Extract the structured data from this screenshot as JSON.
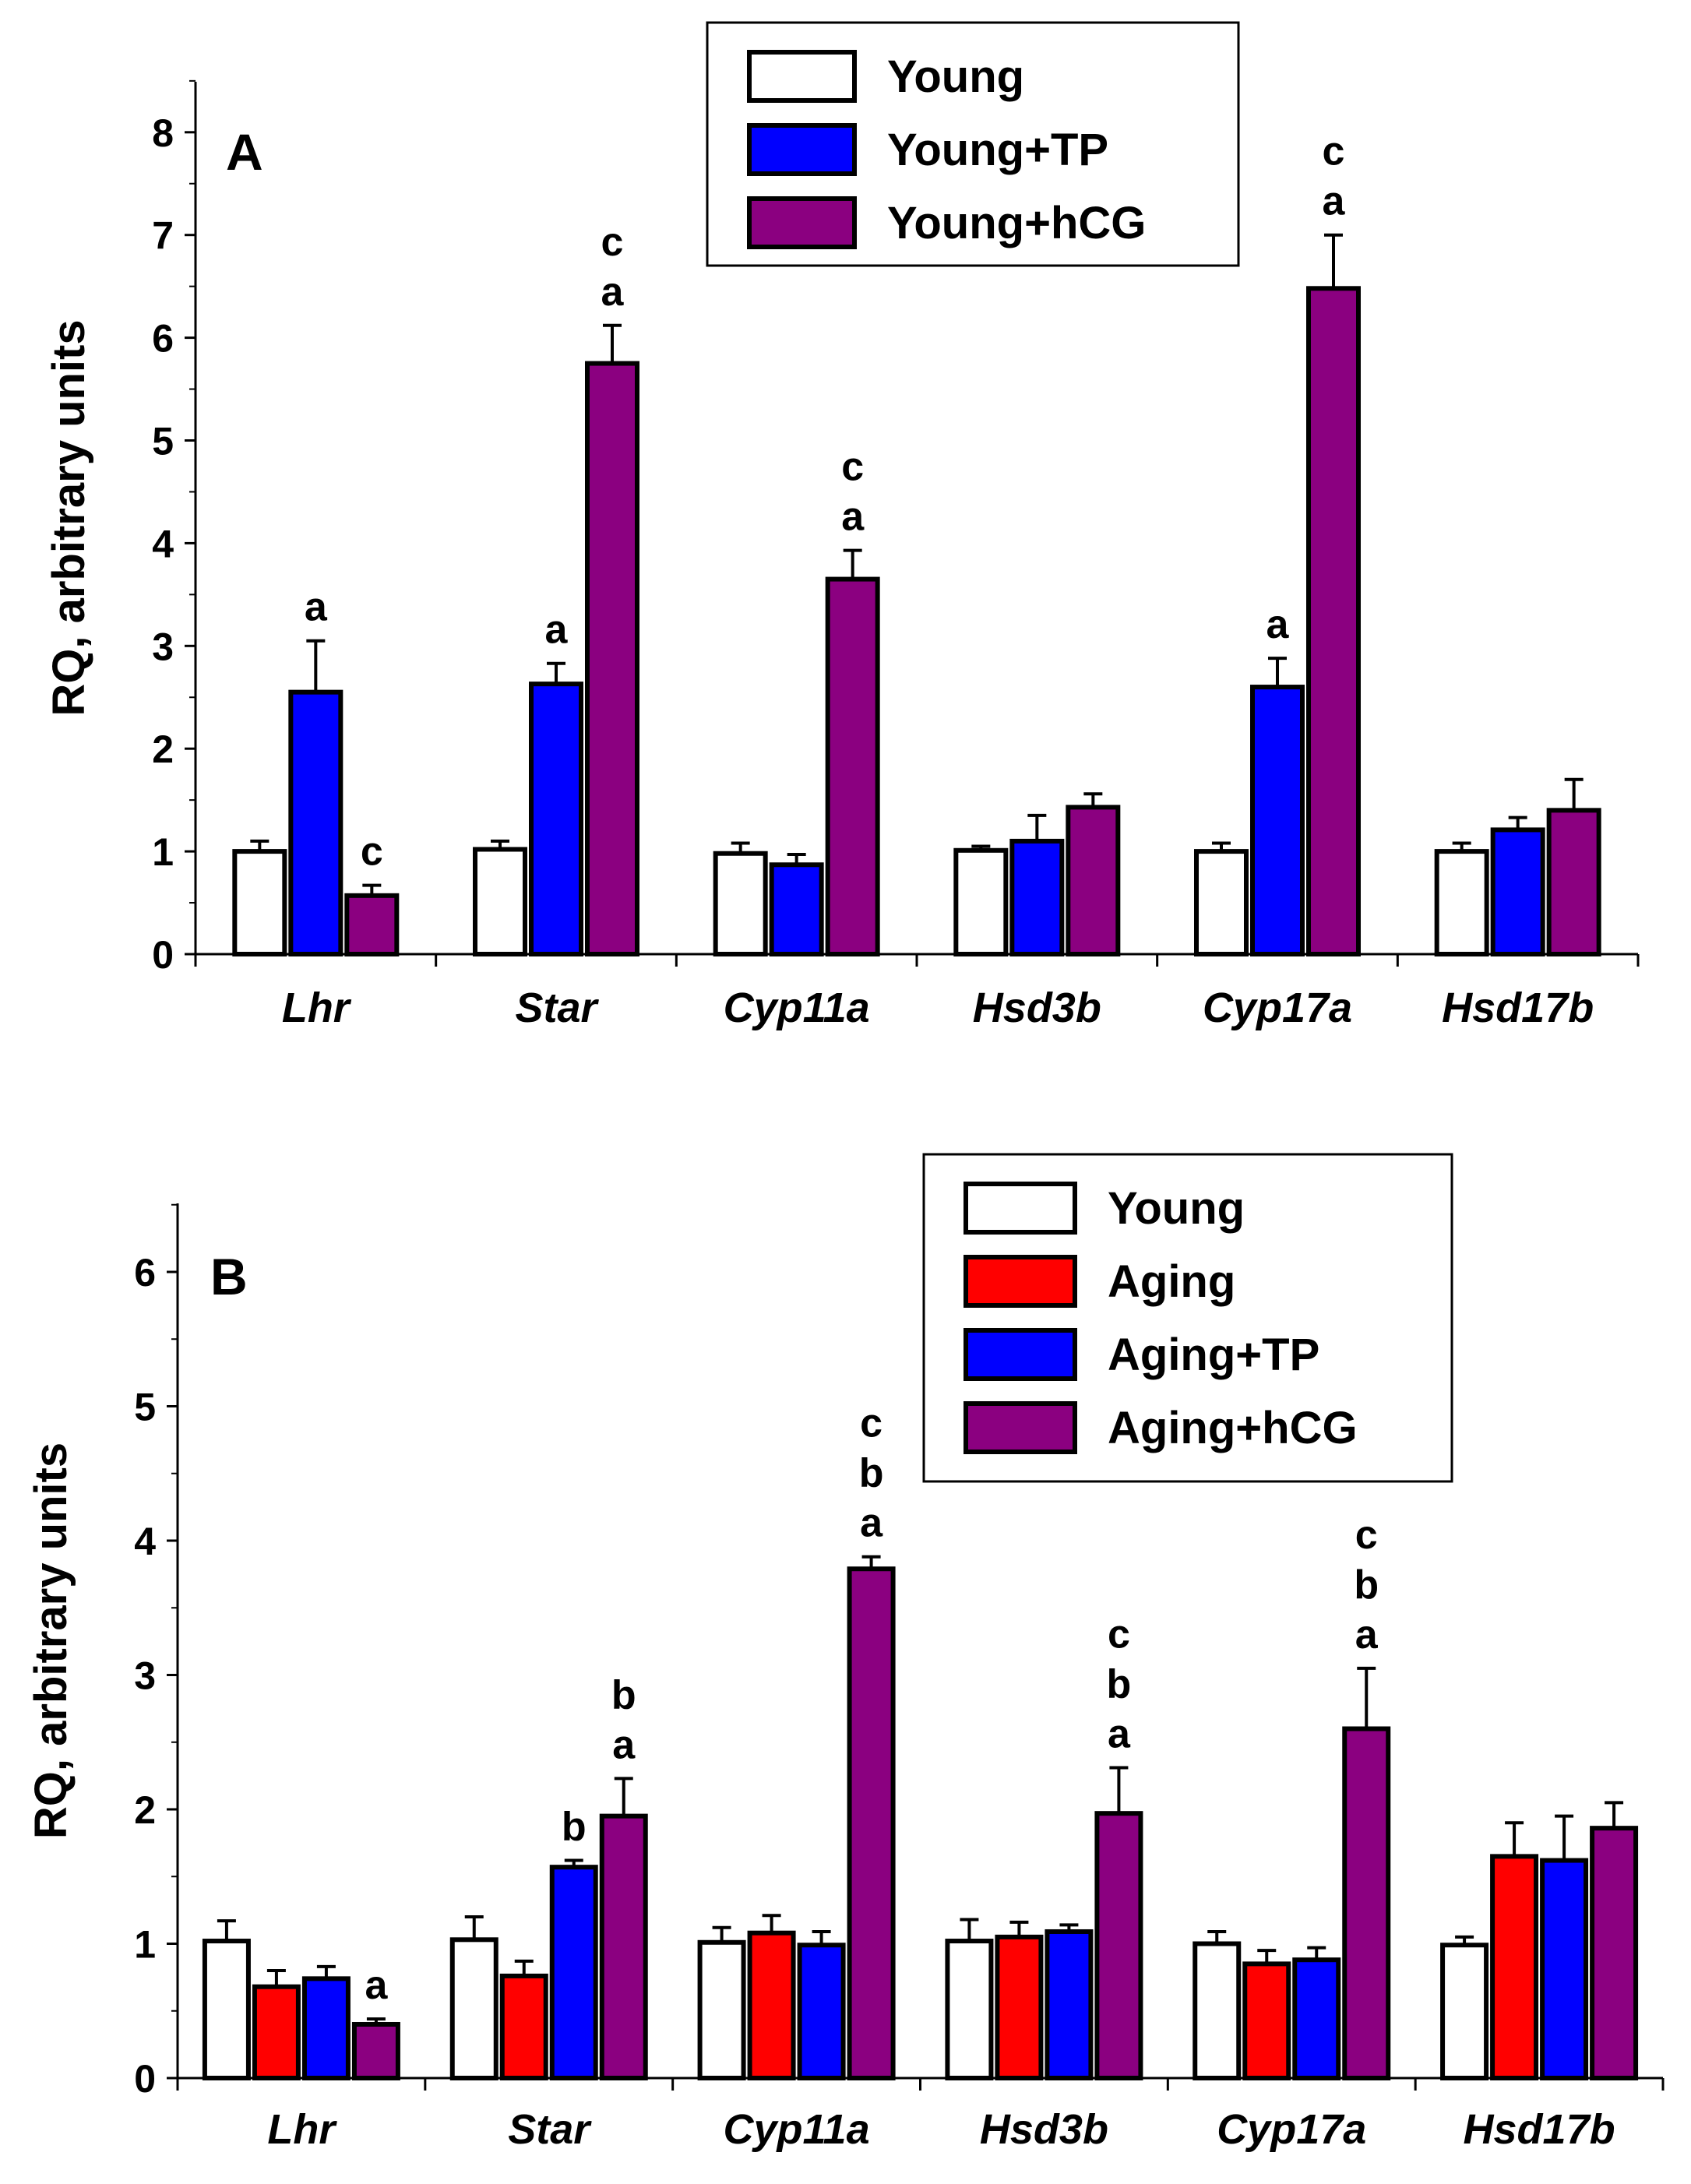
{
  "chart_data": [
    {
      "type": "bar",
      "panel_label": "A",
      "ylabel": "RQ, arbitrary units",
      "xlabel": "",
      "ylim": [
        0,
        8.5
      ],
      "yticks": [
        "0",
        "1",
        "2",
        "3",
        "4",
        "5",
        "6",
        "7",
        "8"
      ],
      "categories": [
        "Lhr",
        "Star",
        "Cyp11a",
        "Hsd3b",
        "Cyp17a",
        "Hsd17b"
      ],
      "legend_position": "top-center",
      "series": [
        {
          "name": "Young",
          "color": "#ffffff",
          "values": [
            1.0,
            1.02,
            0.98,
            1.01,
            1.0,
            1.0
          ],
          "errors": [
            0.1,
            0.08,
            0.1,
            0.04,
            0.08,
            0.08
          ],
          "letters": [
            [],
            [],
            [],
            [],
            [],
            []
          ]
        },
        {
          "name": "Young+TP",
          "color": "#0000ff",
          "values": [
            2.55,
            2.63,
            0.87,
            1.1,
            2.6,
            1.21
          ],
          "errors": [
            0.5,
            0.2,
            0.1,
            0.25,
            0.28,
            0.12
          ],
          "letters": [
            [
              "a"
            ],
            [
              "a"
            ],
            [],
            [],
            [
              "a"
            ],
            []
          ]
        },
        {
          "name": "Young+hCG",
          "color": "#8b0080",
          "values": [
            0.57,
            5.75,
            3.65,
            1.43,
            6.48,
            1.4
          ],
          "errors": [
            0.1,
            0.37,
            0.28,
            0.13,
            0.52,
            0.3
          ],
          "letters": [
            [
              "c"
            ],
            [
              "c",
              "a"
            ],
            [
              "c",
              "a"
            ],
            [],
            [
              "c",
              "a"
            ],
            []
          ]
        }
      ]
    },
    {
      "type": "bar",
      "panel_label": "B",
      "ylabel": "RQ, arbitrary units",
      "xlabel": "",
      "ylim": [
        0,
        6.5
      ],
      "yticks": [
        "0",
        "1",
        "2",
        "3",
        "4",
        "5",
        "6"
      ],
      "categories": [
        "Lhr",
        "Star",
        "Cyp11a",
        "Hsd3b",
        "Cyp17a",
        "Hsd17b"
      ],
      "legend_position": "top-right",
      "series": [
        {
          "name": "Young",
          "color": "#ffffff",
          "values": [
            1.02,
            1.03,
            1.01,
            1.02,
            1.0,
            0.99
          ],
          "errors": [
            0.15,
            0.17,
            0.11,
            0.16,
            0.09,
            0.06
          ],
          "letters": [
            [],
            [],
            [],
            [],
            [],
            []
          ]
        },
        {
          "name": "Aging",
          "color": "#ff0000",
          "values": [
            0.68,
            0.76,
            1.08,
            1.05,
            0.85,
            1.65
          ],
          "errors": [
            0.12,
            0.11,
            0.13,
            0.11,
            0.1,
            0.25
          ],
          "letters": [
            [],
            [],
            [],
            [],
            [],
            []
          ]
        },
        {
          "name": "Aging+TP",
          "color": "#0000ff",
          "values": [
            0.74,
            1.57,
            0.99,
            1.09,
            0.88,
            1.62
          ],
          "errors": [
            0.09,
            0.05,
            0.1,
            0.05,
            0.09,
            0.33
          ],
          "letters": [
            [],
            [
              "b"
            ],
            [],
            [],
            [],
            []
          ]
        },
        {
          "name": "Aging+hCG",
          "color": "#8b0080",
          "values": [
            0.4,
            1.95,
            3.79,
            1.97,
            2.6,
            1.86
          ],
          "errors": [
            0.04,
            0.28,
            0.09,
            0.34,
            0.45,
            0.19
          ],
          "letters": [
            [
              "a"
            ],
            [
              "b",
              "a"
            ],
            [
              "c",
              "b",
              "a"
            ],
            [
              "c",
              "b",
              "a"
            ],
            [
              "c",
              "b",
              "a"
            ],
            []
          ]
        }
      ]
    }
  ]
}
